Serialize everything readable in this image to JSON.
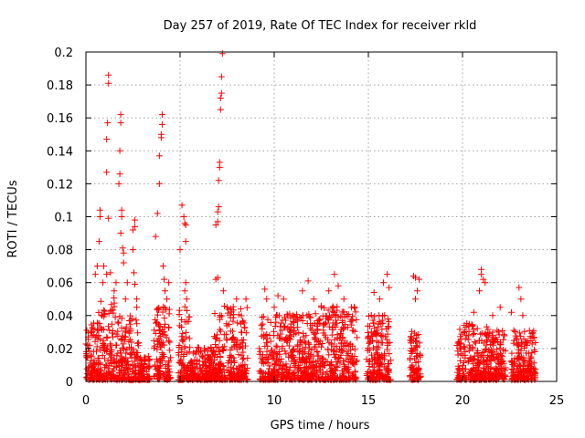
{
  "chart_data": {
    "type": "scatter",
    "title": "Day 257 of 2019, Rate Of TEC Index for receiver rkld",
    "xlabel": "GPS time / hours",
    "ylabel": "ROTI / TECUs",
    "xlim": [
      0,
      25
    ],
    "ylim": [
      0,
      0.2
    ],
    "xticks": [
      0,
      5,
      10,
      15,
      20,
      25
    ],
    "yticks": [
      0,
      0.02,
      0.04,
      0.06,
      0.08,
      0.1,
      0.12,
      0.14,
      0.16,
      0.18,
      0.2
    ],
    "grid": true,
    "marker": "+",
    "color": "#ff0000",
    "series": [
      {
        "name": "ROTI",
        "points": [
          [
            0.5,
            0.065
          ],
          [
            0.6,
            0.07
          ],
          [
            0.7,
            0.085
          ],
          [
            0.75,
            0.1
          ],
          [
            0.75,
            0.104
          ],
          [
            0.9,
            0.06
          ],
          [
            0.95,
            0.07
          ],
          [
            1.1,
            0.127
          ],
          [
            1.1,
            0.147
          ],
          [
            1.15,
            0.157
          ],
          [
            1.2,
            0.181
          ],
          [
            1.2,
            0.186
          ],
          [
            1.2,
            0.099
          ],
          [
            1.1,
            0.065
          ],
          [
            1.3,
            0.066
          ],
          [
            1.5,
            0.055
          ],
          [
            1.6,
            0.06
          ],
          [
            1.75,
            0.12
          ],
          [
            1.8,
            0.126
          ],
          [
            1.8,
            0.14
          ],
          [
            1.85,
            0.157
          ],
          [
            1.85,
            0.162
          ],
          [
            1.9,
            0.104
          ],
          [
            1.9,
            0.1
          ],
          [
            1.85,
            0.09
          ],
          [
            1.95,
            0.081
          ],
          [
            2.0,
            0.072
          ],
          [
            2.0,
            0.078
          ],
          [
            2.1,
            0.05
          ],
          [
            2.2,
            0.06
          ],
          [
            2.5,
            0.092
          ],
          [
            2.6,
            0.098
          ],
          [
            2.6,
            0.094
          ],
          [
            2.5,
            0.08
          ],
          [
            2.55,
            0.066
          ],
          [
            2.6,
            0.059
          ],
          [
            2.7,
            0.05
          ],
          [
            2.7,
            0.045
          ],
          [
            3.7,
            0.088
          ],
          [
            3.8,
            0.102
          ],
          [
            3.9,
            0.12
          ],
          [
            3.9,
            0.137
          ],
          [
            4.0,
            0.148
          ],
          [
            4.0,
            0.15
          ],
          [
            4.05,
            0.156
          ],
          [
            4.05,
            0.162
          ],
          [
            4.1,
            0.07
          ],
          [
            4.15,
            0.062
          ],
          [
            4.2,
            0.055
          ],
          [
            4.3,
            0.05
          ],
          [
            4.4,
            0.06
          ],
          [
            5.1,
            0.107
          ],
          [
            5.2,
            0.1
          ],
          [
            5.25,
            0.096
          ],
          [
            5.3,
            0.095
          ],
          [
            5.3,
            0.085
          ],
          [
            5.0,
            0.08
          ],
          [
            5.3,
            0.06
          ],
          [
            5.25,
            0.055
          ],
          [
            5.35,
            0.05
          ],
          [
            6.9,
            0.095
          ],
          [
            7.0,
            0.097
          ],
          [
            7.0,
            0.103
          ],
          [
            7.05,
            0.106
          ],
          [
            7.05,
            0.122
          ],
          [
            7.1,
            0.13
          ],
          [
            7.1,
            0.133
          ],
          [
            7.15,
            0.165
          ],
          [
            7.15,
            0.172
          ],
          [
            7.2,
            0.175
          ],
          [
            7.2,
            0.185
          ],
          [
            7.25,
            0.199
          ],
          [
            6.9,
            0.062
          ],
          [
            7.0,
            0.063
          ],
          [
            7.3,
            0.055
          ],
          [
            7.5,
            0.045
          ],
          [
            8.0,
            0.05
          ],
          [
            8.5,
            0.05
          ],
          [
            9.5,
            0.056
          ],
          [
            9.6,
            0.05
          ],
          [
            10.0,
            0.045
          ],
          [
            10.2,
            0.052
          ],
          [
            10.5,
            0.05
          ],
          [
            11.0,
            0.04
          ],
          [
            11.5,
            0.055
          ],
          [
            11.8,
            0.061
          ],
          [
            12.1,
            0.05
          ],
          [
            12.5,
            0.045
          ],
          [
            12.9,
            0.055
          ],
          [
            13.2,
            0.065
          ],
          [
            13.4,
            0.058
          ],
          [
            13.7,
            0.05
          ],
          [
            14.1,
            0.045
          ],
          [
            15.3,
            0.054
          ],
          [
            15.6,
            0.05
          ],
          [
            15.8,
            0.06
          ],
          [
            16.0,
            0.065
          ],
          [
            16.1,
            0.057
          ],
          [
            17.4,
            0.064
          ],
          [
            17.5,
            0.063
          ],
          [
            17.6,
            0.055
          ],
          [
            17.5,
            0.05
          ],
          [
            17.7,
            0.062
          ],
          [
            21.0,
            0.068
          ],
          [
            21.0,
            0.065
          ],
          [
            21.1,
            0.062
          ],
          [
            21.2,
            0.06
          ],
          [
            20.9,
            0.055
          ],
          [
            20.6,
            0.042
          ],
          [
            21.6,
            0.04
          ],
          [
            22.0,
            0.045
          ],
          [
            22.6,
            0.042
          ],
          [
            23.0,
            0.057
          ],
          [
            23.1,
            0.05
          ],
          [
            23.2,
            0.04
          ]
        ]
      }
    ],
    "density_bands": [
      {
        "x_start": 0.0,
        "x_end": 0.6,
        "peak": 0.035
      },
      {
        "x_start": 0.6,
        "x_end": 1.6,
        "peak": 0.05
      },
      {
        "x_start": 1.6,
        "x_end": 2.8,
        "peak": 0.04
      },
      {
        "x_start": 2.8,
        "x_end": 3.4,
        "peak": 0.015
      },
      {
        "x_start": 3.6,
        "x_end": 4.5,
        "peak": 0.045
      },
      {
        "x_start": 4.9,
        "x_end": 5.5,
        "peak": 0.045
      },
      {
        "x_start": 5.5,
        "x_end": 6.8,
        "peak": 0.02
      },
      {
        "x_start": 6.8,
        "x_end": 8.6,
        "peak": 0.045
      },
      {
        "x_start": 9.2,
        "x_end": 12.0,
        "peak": 0.04
      },
      {
        "x_start": 12.0,
        "x_end": 14.4,
        "peak": 0.045
      },
      {
        "x_start": 14.9,
        "x_end": 16.2,
        "peak": 0.04
      },
      {
        "x_start": 17.2,
        "x_end": 17.8,
        "peak": 0.03
      },
      {
        "x_start": 19.7,
        "x_end": 21.5,
        "peak": 0.035
      },
      {
        "x_start": 21.5,
        "x_end": 22.3,
        "peak": 0.03
      },
      {
        "x_start": 22.6,
        "x_end": 23.9,
        "peak": 0.03
      }
    ]
  }
}
